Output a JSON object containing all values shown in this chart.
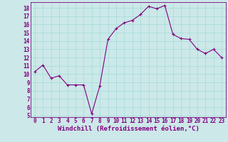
{
  "x": [
    0,
    1,
    2,
    3,
    4,
    5,
    6,
    7,
    8,
    9,
    10,
    11,
    12,
    13,
    14,
    15,
    16,
    17,
    18,
    19,
    20,
    21,
    22,
    23
  ],
  "y": [
    10.3,
    11.1,
    9.5,
    9.8,
    8.7,
    8.7,
    8.7,
    5.2,
    8.6,
    14.2,
    15.5,
    16.2,
    16.5,
    17.2,
    18.2,
    17.9,
    18.3,
    14.8,
    14.3,
    14.2,
    13.0,
    12.5,
    13.0,
    12.0
  ],
  "line_color": "#800080",
  "marker_color": "#800080",
  "bg_color": "#cce8e8",
  "grid_color": "#aadddd",
  "xlabel": "Windchill (Refroidissement éolien,°C)",
  "xlabel_color": "#800080",
  "tick_color": "#800080",
  "ylim": [
    4.8,
    18.7
  ],
  "xlim": [
    -0.5,
    23.5
  ],
  "yticks": [
    5,
    6,
    7,
    8,
    9,
    10,
    11,
    12,
    13,
    14,
    15,
    16,
    17,
    18
  ],
  "xticks": [
    0,
    1,
    2,
    3,
    4,
    5,
    6,
    7,
    8,
    9,
    10,
    11,
    12,
    13,
    14,
    15,
    16,
    17,
    18,
    19,
    20,
    21,
    22,
    23
  ],
  "tick_fontsize": 5.5,
  "label_fontsize": 6.5,
  "spine_color": "#800080"
}
